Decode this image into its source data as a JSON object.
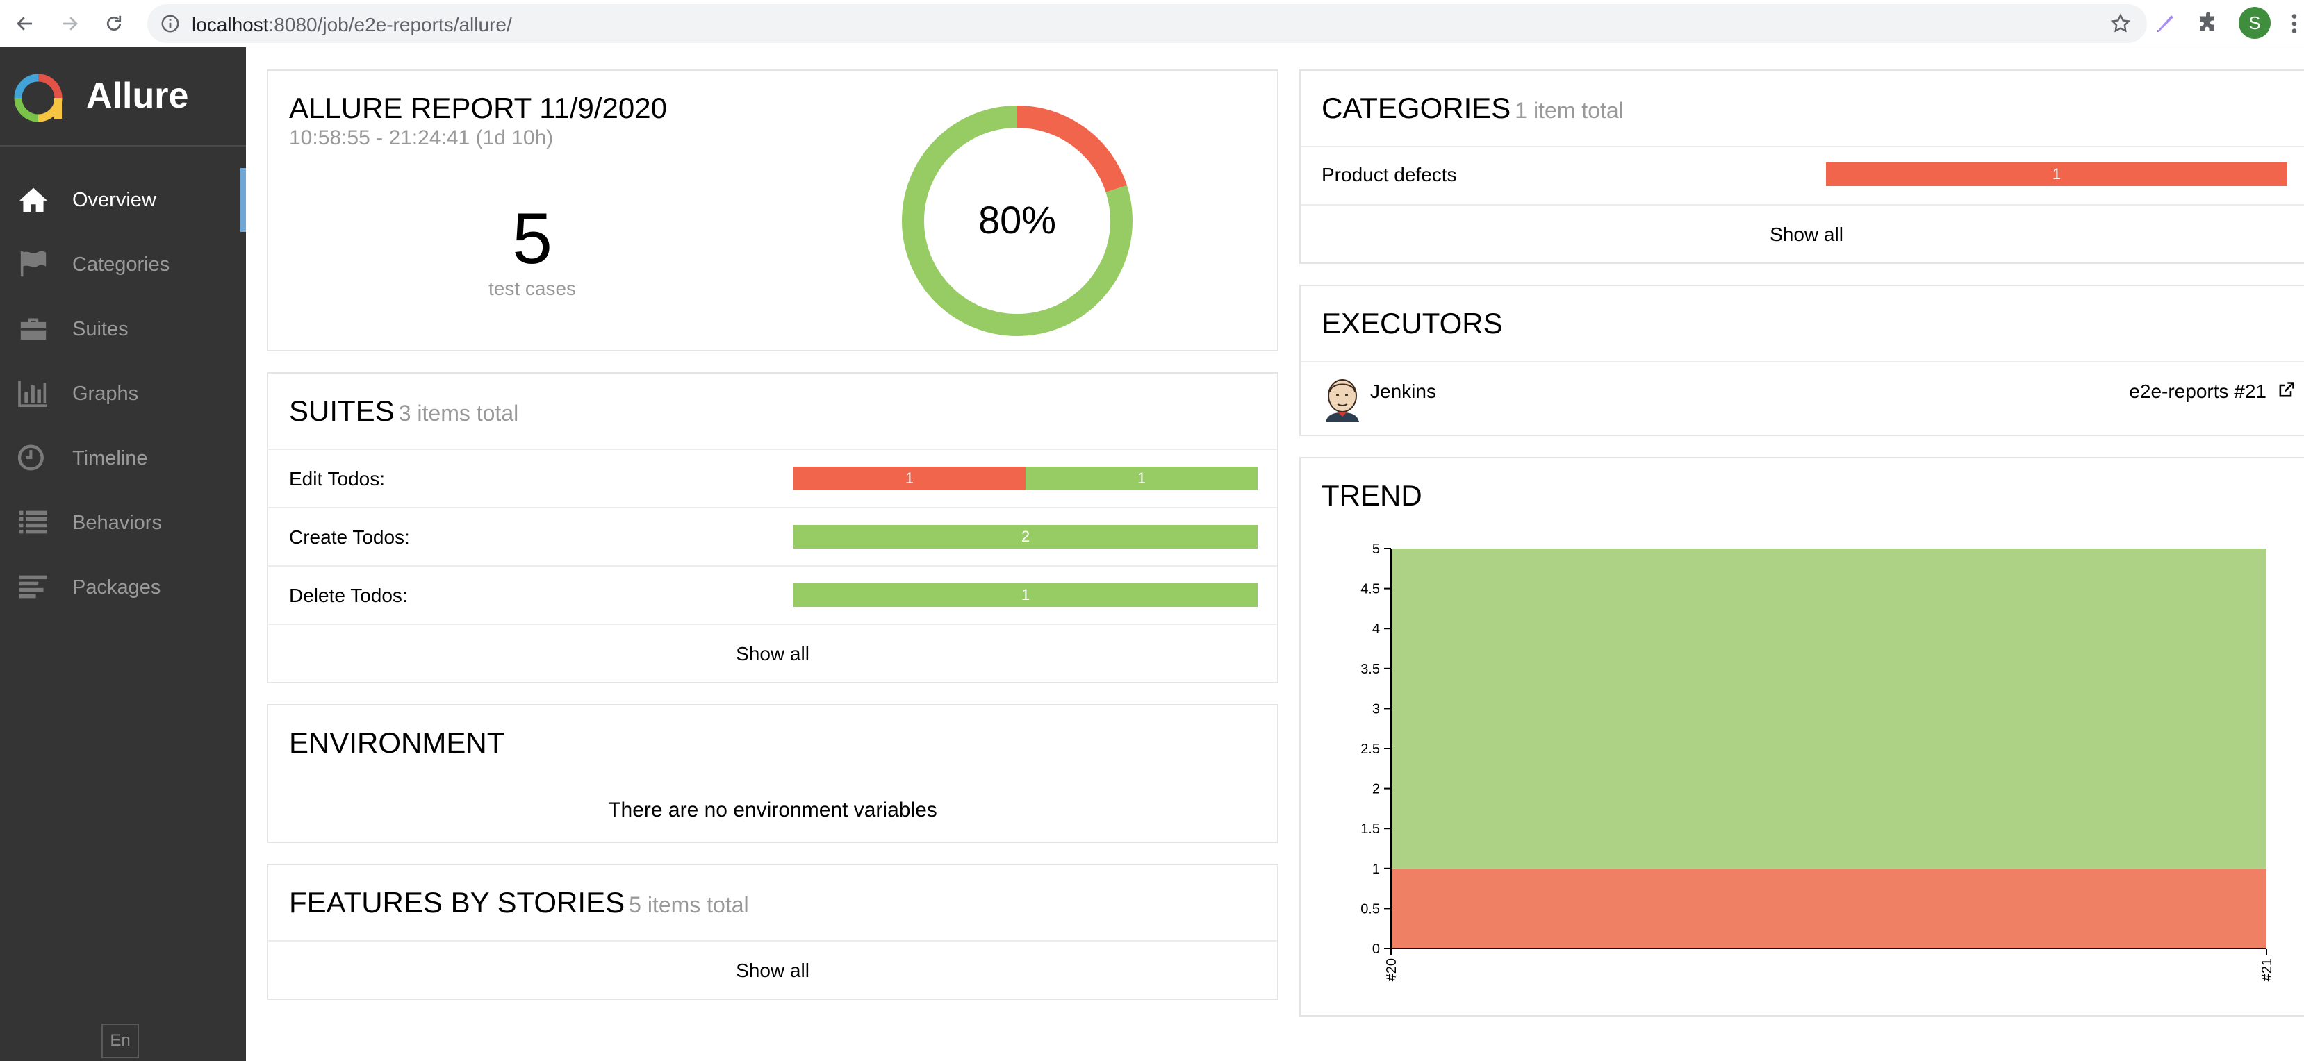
{
  "browser": {
    "url_host": "localhost",
    "url_path": ":8080/job/e2e-reports/allure/",
    "profile_initial": "S"
  },
  "sidebar": {
    "brand": "Allure",
    "items": [
      {
        "label": "Overview",
        "icon": "home-icon",
        "active": true
      },
      {
        "label": "Categories",
        "icon": "flag-icon"
      },
      {
        "label": "Suites",
        "icon": "briefcase-icon"
      },
      {
        "label": "Graphs",
        "icon": "bar-chart-icon"
      },
      {
        "label": "Timeline",
        "icon": "clock-icon"
      },
      {
        "label": "Behaviors",
        "icon": "list-icon"
      },
      {
        "label": "Packages",
        "icon": "align-left-icon"
      }
    ],
    "language": "En"
  },
  "summary": {
    "title": "ALLURE REPORT 11/9/2020",
    "time_range": "10:58:55 - 21:24:41 (1d 10h)",
    "test_count": "5",
    "test_count_label": "test cases",
    "percent_label": "80%",
    "passed_fraction": 0.8,
    "failed_fraction": 0.2
  },
  "suites": {
    "title": "SUITES",
    "count": "3 items total",
    "rows": [
      {
        "name": "Edit Todos:",
        "failed": "1",
        "passed": "1"
      },
      {
        "name": "Create Todos:",
        "failed": "",
        "passed": "2"
      },
      {
        "name": "Delete Todos:",
        "failed": "",
        "passed": "1"
      }
    ],
    "show_all": "Show all"
  },
  "environment": {
    "title": "ENVIRONMENT",
    "empty_text": "There are no environment variables"
  },
  "features": {
    "title": "FEATURES BY STORIES",
    "count": "5 items total",
    "show_all": "Show all"
  },
  "categories": {
    "title": "CATEGORIES",
    "count": "1 item total",
    "rows": [
      {
        "name": "Product defects",
        "value": "1"
      }
    ],
    "show_all": "Show all"
  },
  "executors": {
    "title": "EXECUTORS",
    "name": "Jenkins",
    "build": "e2e-reports #21"
  },
  "trend": {
    "title": "TREND"
  },
  "colors": {
    "failed": "#f1654c",
    "passed": "#97cc64",
    "trend_passed": "#aed285",
    "trend_failed": "#ef8064"
  },
  "chart_data": {
    "type": "area",
    "x": [
      "#20",
      "#21"
    ],
    "y_ticks": [
      "0",
      "0.5",
      "1",
      "1.5",
      "2",
      "2.5",
      "3",
      "3.5",
      "4",
      "4.5",
      "5"
    ],
    "ylim": [
      0,
      5
    ],
    "series": [
      {
        "values": [
          1,
          1
        ],
        "color": "#ef8064"
      },
      {
        "values": [
          4,
          4
        ],
        "color": "#aed285"
      }
    ]
  }
}
